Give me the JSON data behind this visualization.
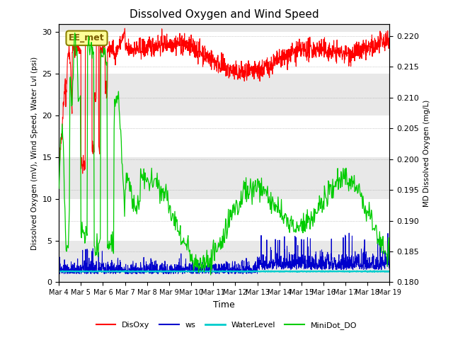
{
  "title": "Dissolved Oxygen and Wind Speed",
  "xlabel": "Time",
  "ylabel_left": "Dissolved Oxygen (mV), Wind Speed, Water Lvl (psi)",
  "ylabel_right": "MD Dissolved Oxygen (mg/L)",
  "annotation": "EE_met",
  "left_ylim": [
    0,
    31
  ],
  "right_ylim": [
    0.18,
    0.222
  ],
  "left_yticks": [
    0,
    5,
    10,
    15,
    20,
    25,
    30
  ],
  "right_yticks": [
    0.18,
    0.185,
    0.19,
    0.195,
    0.2,
    0.205,
    0.21,
    0.215,
    0.22
  ],
  "xtick_labels": [
    "Mar 4",
    "Mar 5",
    "Mar 6",
    "Mar 7",
    "Mar 8",
    "Mar 9",
    "Mar 10",
    "Mar 11",
    "Mar 12",
    "Mar 13",
    "Mar 14",
    "Mar 15",
    "Mar 16",
    "Mar 17",
    "Mar 18",
    "Mar 19"
  ],
  "colors": {
    "DisOxy": "#ff0000",
    "ws": "#0000cc",
    "WaterLevel": "#00cccc",
    "MiniDot_DO": "#00cc00",
    "band_gray": "#e8e8e8",
    "band_white": "#ffffff"
  },
  "legend_labels": [
    "DisOxy",
    "ws",
    "WaterLevel",
    "MiniDot_DO"
  ],
  "legend_colors": [
    "#ff0000",
    "#0000cc",
    "#00cccc",
    "#00cc00"
  ]
}
